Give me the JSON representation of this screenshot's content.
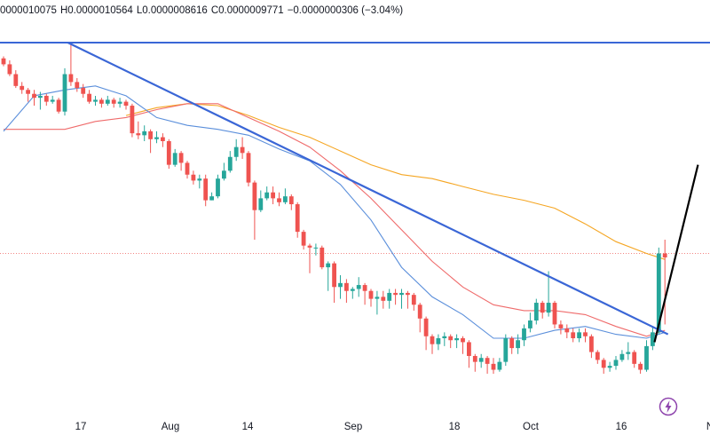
{
  "legend": {
    "open": "0000010075",
    "high_label": "H",
    "high": "0.0000010564",
    "low_label": "L",
    "low": "0.0000008616",
    "close_label": "C",
    "close": "0.0000009771",
    "change": "−0.0000000306 (−3.04%)"
  },
  "colors": {
    "up": "#26a69a",
    "down": "#ef5350",
    "trendline": "#3a66d6",
    "ma_fast": "#5b8fdb",
    "ma_mid": "#ef6b6b",
    "ma_slow": "#f5a623",
    "arrow": "#000000"
  },
  "x_axis": {
    "labels": [
      "17",
      "Aug",
      "14",
      "Sep",
      "18",
      "Oct",
      "16",
      "N"
    ]
  },
  "chart_data": {
    "type": "candlestick",
    "candles": [
      [
        0.92,
        0.89,
        0.93,
        0.88
      ],
      [
        0.89,
        0.84,
        0.91,
        0.83
      ],
      [
        0.84,
        0.78,
        0.86,
        0.77
      ],
      [
        0.78,
        0.76,
        0.8,
        0.74
      ],
      [
        0.76,
        0.74,
        0.77,
        0.7
      ],
      [
        0.74,
        0.72,
        0.76,
        0.68
      ],
      [
        0.72,
        0.73,
        0.75,
        0.66
      ],
      [
        0.73,
        0.7,
        0.74,
        0.68
      ],
      [
        0.7,
        0.71,
        0.73,
        0.69
      ],
      [
        0.71,
        0.65,
        0.72,
        0.64
      ],
      [
        0.65,
        0.84,
        0.87,
        0.63
      ],
      [
        0.84,
        0.8,
        0.99,
        0.78
      ],
      [
        0.8,
        0.77,
        0.82,
        0.75
      ],
      [
        0.77,
        0.74,
        0.79,
        0.72
      ],
      [
        0.74,
        0.7,
        0.76,
        0.69
      ],
      [
        0.7,
        0.71,
        0.73,
        0.68
      ],
      [
        0.71,
        0.69,
        0.72,
        0.67
      ],
      [
        0.69,
        0.71,
        0.73,
        0.68
      ],
      [
        0.71,
        0.69,
        0.72,
        0.67
      ],
      [
        0.69,
        0.7,
        0.72,
        0.67
      ],
      [
        0.7,
        0.68,
        0.71,
        0.66
      ],
      [
        0.68,
        0.54,
        0.69,
        0.52
      ],
      [
        0.54,
        0.53,
        0.6,
        0.51
      ],
      [
        0.53,
        0.55,
        0.58,
        0.5
      ],
      [
        0.55,
        0.51,
        0.56,
        0.44
      ],
      [
        0.51,
        0.52,
        0.55,
        0.49
      ],
      [
        0.52,
        0.5,
        0.54,
        0.47
      ],
      [
        0.5,
        0.38,
        0.51,
        0.36
      ],
      [
        0.38,
        0.44,
        0.46,
        0.37
      ],
      [
        0.44,
        0.39,
        0.45,
        0.35
      ],
      [
        0.39,
        0.33,
        0.4,
        0.31
      ],
      [
        0.33,
        0.3,
        0.35,
        0.28
      ],
      [
        0.3,
        0.31,
        0.33,
        0.26
      ],
      [
        0.31,
        0.2,
        0.33,
        0.17
      ],
      [
        0.2,
        0.22,
        0.24,
        0.2
      ],
      [
        0.22,
        0.31,
        0.33,
        0.21
      ],
      [
        0.31,
        0.35,
        0.39,
        0.3
      ],
      [
        0.35,
        0.42,
        0.45,
        0.34
      ],
      [
        0.42,
        0.47,
        0.51,
        0.4
      ],
      [
        0.47,
        0.44,
        0.52,
        0.41
      ],
      [
        0.44,
        0.29,
        0.45,
        0.27
      ],
      [
        0.29,
        0.15,
        0.3,
        0.0
      ],
      [
        0.15,
        0.21,
        0.25,
        0.14
      ],
      [
        0.21,
        0.24,
        0.27,
        0.2
      ],
      [
        0.24,
        0.21,
        0.27,
        0.18
      ],
      [
        0.21,
        0.19,
        0.24,
        0.17
      ],
      [
        0.19,
        0.22,
        0.26,
        0.18
      ],
      [
        0.22,
        0.18,
        0.23,
        0.15
      ],
      [
        0.18,
        0.04,
        0.19,
        0.01
      ],
      [
        0.04,
        -0.03,
        0.05,
        -0.05
      ],
      [
        -0.03,
        -0.04,
        -0.02,
        -0.17
      ],
      [
        -0.04,
        -0.04,
        -0.02,
        -0.08
      ],
      [
        -0.04,
        -0.14,
        -0.03,
        -0.15
      ],
      [
        -0.14,
        -0.12,
        -0.11,
        -0.26
      ],
      [
        -0.12,
        -0.24,
        -0.11,
        -0.32
      ],
      [
        -0.24,
        -0.22,
        -0.18,
        -0.3
      ],
      [
        -0.22,
        -0.26,
        -0.2,
        -0.32
      ],
      [
        -0.26,
        -0.25,
        -0.24,
        -0.3
      ],
      [
        -0.25,
        -0.23,
        -0.19,
        -0.29
      ],
      [
        -0.23,
        -0.26,
        -0.22,
        -0.33
      ],
      [
        -0.26,
        -0.3,
        -0.25,
        -0.34
      ],
      [
        -0.3,
        -0.29,
        -0.26,
        -0.38
      ],
      [
        -0.29,
        -0.31,
        -0.26,
        -0.35
      ],
      [
        -0.31,
        -0.27,
        -0.25,
        -0.35
      ],
      [
        -0.27,
        -0.28,
        -0.25,
        -0.33
      ],
      [
        -0.28,
        -0.27,
        -0.25,
        -0.35
      ],
      [
        -0.27,
        -0.28,
        -0.26,
        -0.35
      ],
      [
        -0.28,
        -0.33,
        -0.27,
        -0.36
      ],
      [
        -0.33,
        -0.4,
        -0.32,
        -0.47
      ],
      [
        -0.4,
        -0.49,
        -0.39,
        -0.56
      ],
      [
        -0.49,
        -0.53,
        -0.48,
        -0.58
      ],
      [
        -0.53,
        -0.5,
        -0.48,
        -0.56
      ],
      [
        -0.5,
        -0.49,
        -0.47,
        -0.54
      ],
      [
        -0.49,
        -0.51,
        -0.48,
        -0.55
      ],
      [
        -0.51,
        -0.5,
        -0.48,
        -0.55
      ],
      [
        -0.5,
        -0.52,
        -0.49,
        -0.58
      ],
      [
        -0.52,
        -0.59,
        -0.51,
        -0.65
      ],
      [
        -0.59,
        -0.62,
        -0.58,
        -0.67
      ],
      [
        -0.62,
        -0.6,
        -0.58,
        -0.65
      ],
      [
        -0.6,
        -0.63,
        -0.59,
        -0.68
      ],
      [
        -0.63,
        -0.66,
        -0.6,
        -0.68
      ],
      [
        -0.66,
        -0.62,
        -0.6,
        -0.67
      ],
      [
        -0.62,
        -0.5,
        -0.48,
        -0.64
      ],
      [
        -0.5,
        -0.55,
        -0.49,
        -0.58
      ],
      [
        -0.55,
        -0.51,
        -0.48,
        -0.58
      ],
      [
        -0.51,
        -0.45,
        -0.43,
        -0.54
      ],
      [
        -0.45,
        -0.41,
        -0.37,
        -0.47
      ],
      [
        -0.41,
        -0.32,
        -0.3,
        -0.43
      ],
      [
        -0.32,
        -0.37,
        -0.31,
        -0.4
      ],
      [
        -0.37,
        -0.32,
        -0.16,
        -0.39
      ],
      [
        -0.32,
        -0.43,
        -0.31,
        -0.45
      ],
      [
        -0.43,
        -0.45,
        -0.41,
        -0.48
      ],
      [
        -0.45,
        -0.47,
        -0.43,
        -0.5
      ],
      [
        -0.47,
        -0.5,
        -0.45,
        -0.52
      ],
      [
        -0.5,
        -0.47,
        -0.45,
        -0.52
      ],
      [
        -0.47,
        -0.49,
        -0.45,
        -0.52
      ],
      [
        -0.49,
        -0.57,
        -0.48,
        -0.6
      ],
      [
        -0.57,
        -0.61,
        -0.56,
        -0.63
      ],
      [
        -0.61,
        -0.65,
        -0.6,
        -0.68
      ],
      [
        -0.65,
        -0.64,
        -0.62,
        -0.67
      ],
      [
        -0.64,
        -0.61,
        -0.59,
        -0.66
      ],
      [
        -0.61,
        -0.58,
        -0.56,
        -0.62
      ],
      [
        -0.58,
        -0.57,
        -0.52,
        -0.61
      ],
      [
        -0.57,
        -0.63,
        -0.56,
        -0.65
      ],
      [
        -0.63,
        -0.66,
        -0.62,
        -0.68
      ],
      [
        -0.66,
        -0.54,
        -0.51,
        -0.67
      ],
      [
        -0.54,
        -0.47,
        -0.44,
        -0.56
      ],
      [
        -0.47,
        -0.07,
        -0.04,
        -0.48
      ],
      [
        -0.07,
        -0.09,
        0.0,
        -0.43
      ]
    ],
    "trendline": [
      [
        10.5,
        1.0
      ],
      [
        108.5,
        -0.48
      ]
    ],
    "resistance": 1.0,
    "ma_fast": [
      [
        0,
        0.55
      ],
      [
        5,
        0.73
      ],
      [
        10,
        0.76
      ],
      [
        15,
        0.78
      ],
      [
        20,
        0.73
      ],
      [
        25,
        0.62
      ],
      [
        30,
        0.58
      ],
      [
        35,
        0.56
      ],
      [
        40,
        0.53
      ],
      [
        45,
        0.46
      ],
      [
        50,
        0.4
      ],
      [
        55,
        0.28
      ],
      [
        60,
        0.1
      ],
      [
        65,
        -0.14
      ],
      [
        70,
        -0.29
      ],
      [
        75,
        -0.38
      ],
      [
        80,
        -0.5
      ],
      [
        85,
        -0.5
      ],
      [
        90,
        -0.46
      ],
      [
        95,
        -0.44
      ],
      [
        100,
        -0.48
      ],
      [
        105,
        -0.5
      ],
      [
        108,
        -0.47
      ]
    ],
    "ma_mid": [
      [
        0,
        0.56
      ],
      [
        10,
        0.56
      ],
      [
        15,
        0.6
      ],
      [
        20,
        0.62
      ],
      [
        25,
        0.66
      ],
      [
        30,
        0.69
      ],
      [
        35,
        0.69
      ],
      [
        40,
        0.62
      ],
      [
        45,
        0.55
      ],
      [
        50,
        0.47
      ],
      [
        55,
        0.35
      ],
      [
        60,
        0.21
      ],
      [
        65,
        0.05
      ],
      [
        70,
        -0.11
      ],
      [
        75,
        -0.24
      ],
      [
        80,
        -0.33
      ],
      [
        85,
        -0.36
      ],
      [
        90,
        -0.36
      ],
      [
        95,
        -0.38
      ],
      [
        100,
        -0.44
      ],
      [
        105,
        -0.49
      ],
      [
        108,
        -0.46
      ]
    ],
    "ma_slow": [
      [
        20,
        0.63
      ],
      [
        25,
        0.67
      ],
      [
        30,
        0.69
      ],
      [
        35,
        0.68
      ],
      [
        40,
        0.63
      ],
      [
        45,
        0.57
      ],
      [
        50,
        0.52
      ],
      [
        55,
        0.45
      ],
      [
        60,
        0.38
      ],
      [
        65,
        0.33
      ],
      [
        70,
        0.31
      ],
      [
        75,
        0.27
      ],
      [
        80,
        0.23
      ],
      [
        85,
        0.2
      ],
      [
        90,
        0.16
      ],
      [
        95,
        0.08
      ],
      [
        100,
        -0.01
      ],
      [
        105,
        -0.07
      ],
      [
        108,
        -0.1
      ]
    ],
    "projection": [
      [
        106.3,
        -0.52
      ],
      [
        113.4,
        0.38
      ]
    ],
    "last_price_line": -0.07
  }
}
